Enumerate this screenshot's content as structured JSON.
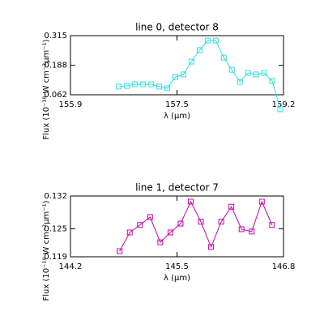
{
  "chart_data": [
    {
      "type": "line",
      "title": "line 0, detector 8",
      "x_label": "λ (µm)",
      "y_label": "Flux (10⁻¹⁸ W cm⁻²µm⁻¹)",
      "x": [
        156.65,
        156.775,
        156.9,
        157.025,
        157.15,
        157.275,
        157.4,
        157.525,
        157.65,
        157.775,
        157.9,
        158.025,
        158.15,
        158.275,
        158.4,
        158.525,
        158.65,
        158.775,
        158.9,
        159.025,
        159.15
      ],
      "series": [
        {
          "color": "#33dddd",
          "values": [
            0.097,
            0.1,
            0.107,
            0.107,
            0.107,
            0.097,
            0.09,
            0.138,
            0.149,
            0.204,
            0.253,
            0.294,
            0.294,
            0.221,
            0.169,
            0.117,
            0.156,
            0.149,
            0.156,
            0.121,
            0.0
          ]
        }
      ],
      "xlim": [
        155.9,
        159.2
      ],
      "xticks": [
        155.9,
        {
          "value": 157.55,
          "label": "157.5"
        },
        159.2
      ],
      "ylim": [
        0.062,
        0.315
      ],
      "yticks": [
        0.062,
        0.188,
        0.315
      ]
    },
    {
      "type": "line",
      "title": "line 1, detector 7",
      "x_label": "λ (µm)",
      "y_label": "Flux (10⁻¹⁸ W cm⁻²µm⁻¹)",
      "x": [
        144.8,
        144.924,
        145.048,
        145.172,
        145.296,
        145.42,
        145.544,
        145.668,
        145.792,
        145.916,
        146.04,
        146.164,
        146.288,
        146.412,
        146.536,
        146.66
      ],
      "series": [
        {
          "color": "#cc00aa",
          "values": [
            0.1202,
            0.1242,
            0.1258,
            0.1275,
            0.1221,
            0.1242,
            0.1261,
            0.1308,
            0.1265,
            0.1211,
            0.1265,
            0.1297,
            0.1249,
            0.1244,
            0.1308,
            0.1258
          ]
        }
      ],
      "xlim": [
        144.2,
        146.8
      ],
      "xticks": [
        144.2,
        145.5,
        146.8
      ],
      "ylim": [
        0.119,
        0.132
      ],
      "yticks": [
        0.119,
        0.125,
        0.132
      ]
    }
  ]
}
